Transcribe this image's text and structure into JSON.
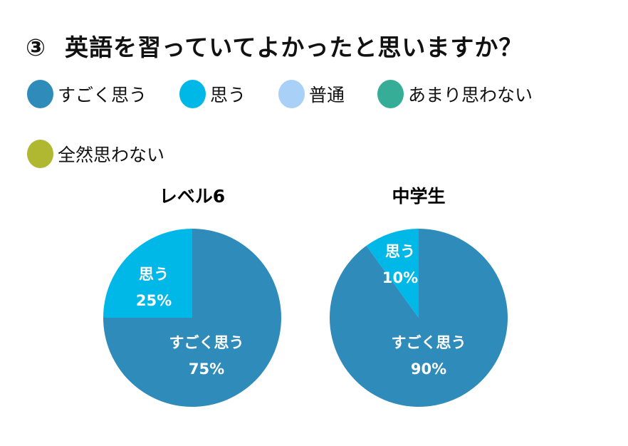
{
  "title": {
    "number": "③",
    "text": "英語を習っていてよかったと思いますか？"
  },
  "legend": [
    {
      "label": "すごく思う",
      "color": "#2E8BBA"
    },
    {
      "label": "思う",
      "color": "#00B8E8"
    },
    {
      "label": "普通",
      "color": "#A9D1F7"
    },
    {
      "label": "あまり思わない",
      "color": "#35AD97"
    },
    {
      "label": "全然思わない",
      "color": "#B0B832"
    }
  ],
  "chart_data": [
    {
      "type": "pie",
      "title": "レベル6",
      "slices": [
        {
          "label": "すごく思う",
          "value": 75,
          "value_label": "75%",
          "color": "#2E8BBA"
        },
        {
          "label": "思う",
          "value": 25,
          "value_label": "25%",
          "color": "#00B8E8"
        }
      ]
    },
    {
      "type": "pie",
      "title": "中学生",
      "slices": [
        {
          "label": "すごく思う",
          "value": 90,
          "value_label": "90%",
          "color": "#2E8BBA"
        },
        {
          "label": "思う",
          "value": 10,
          "value_label": "10%",
          "color": "#00B8E8"
        }
      ]
    }
  ]
}
